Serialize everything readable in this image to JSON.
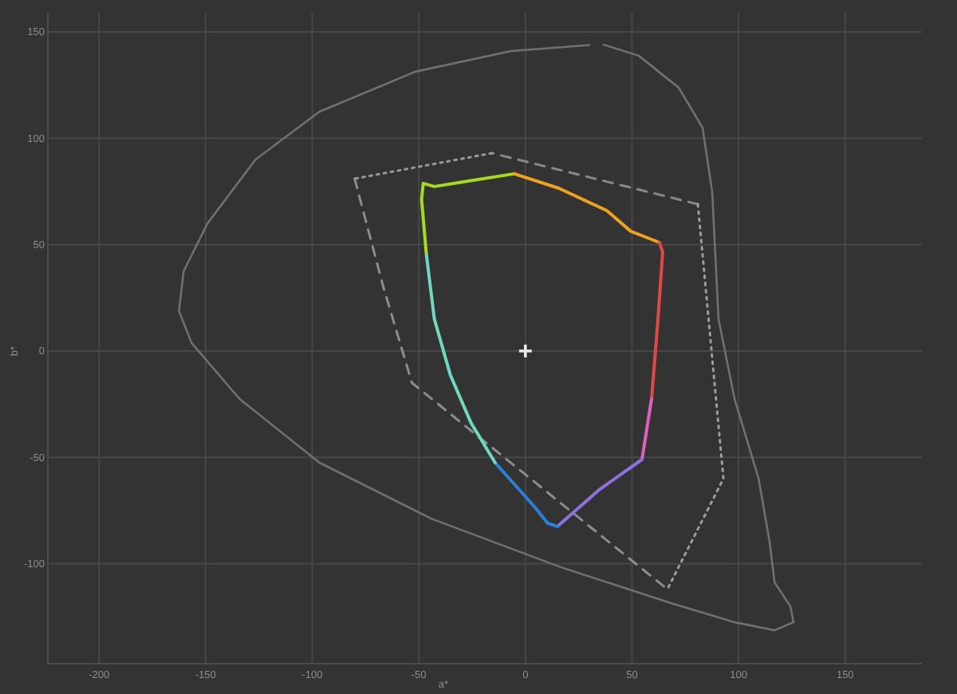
{
  "chart_data": {
    "type": "line",
    "xlabel": "a*",
    "ylabel": "b*",
    "xlim": [
      -224,
      186
    ],
    "ylim": [
      -147,
      159
    ],
    "xticks": [
      -200,
      -150,
      -100,
      -50,
      0,
      50,
      100,
      150
    ],
    "yticks": [
      -100,
      -50,
      0,
      50,
      100,
      150
    ],
    "grid": true,
    "series": [
      {
        "color": "#707070",
        "line_style": "solid",
        "x": [
          36.7,
          53.2,
          71.9,
          83.1,
          87.6,
          90.6,
          98.1,
          109.4,
          114.6,
          116.9,
          124.3,
          125.8,
          116.9,
          98.1,
          68.2,
          15.7,
          -44.2,
          -96.6,
          -134.1,
          -156.6,
          -162.5,
          -160.3,
          -149.1,
          -126.6,
          -96.6,
          -51.7,
          -6.7,
          30
        ],
        "values": [
          144,
          138.8,
          123.8,
          105,
          75,
          15,
          -22.5,
          -60,
          -90,
          -108.8,
          -120,
          -127.5,
          -131.3,
          -127.5,
          -118.5,
          -101.3,
          -78.8,
          -52.5,
          -22.5,
          3.8,
          18.8,
          37.5,
          60,
          90,
          112.5,
          131.3,
          141,
          143.8
        ]
      },
      {
        "color": "#888888",
        "line_style": "dashed",
        "x": [
          80.9,
          -15.7
        ],
        "values": [
          69,
          93
        ]
      },
      {
        "color": "#8c8c8c",
        "line_style": "dashed",
        "x": [
          -80.1,
          -66.6,
          -53.2,
          66.6
        ],
        "values": [
          81,
          30,
          -15,
          -112
        ]
      },
      {
        "color": "#989898",
        "line_style": "dotted",
        "x": [
          -15.7,
          -80.1
        ],
        "values": [
          93,
          81
        ]
      },
      {
        "color": "#9c9c9c",
        "line_style": "dotted",
        "x": [
          80.9,
          92.9,
          66.6
        ],
        "values": [
          69,
          -60,
          -112
        ]
      },
      {
        "color": "#a8d820",
        "line_style": "solid",
        "x": [
          -46.4,
          -48.7,
          -47.9,
          -42.7,
          -29.2,
          -5.2
        ],
        "values": [
          45,
          71.3,
          78.8,
          77.3,
          79.5,
          83.3
        ]
      },
      {
        "color": "#f0a020",
        "line_style": "solid",
        "x": [
          -5.2,
          15.7,
          38.2,
          49.4,
          62.9
        ],
        "values": [
          83.3,
          76.5,
          66,
          56.3,
          51
        ]
      },
      {
        "color": "#e04848",
        "line_style": "solid",
        "x": [
          62.9,
          64.4,
          62.2,
          59.2
        ],
        "values": [
          51,
          46.5,
          15,
          -22.5
        ]
      },
      {
        "color": "#e060c0",
        "line_style": "solid",
        "x": [
          59.2,
          54.7
        ],
        "values": [
          -22.5,
          -51
        ]
      },
      {
        "color": "#9070e0",
        "line_style": "solid",
        "x": [
          54.7,
          34.5,
          15
        ],
        "values": [
          -51,
          -65.3,
          -82.5
        ]
      },
      {
        "color": "#2a80d8",
        "line_style": "solid",
        "x": [
          15,
          10.5,
          4.5,
          -14.2
        ],
        "values": [
          -82.5,
          -81,
          -73.5,
          -52.5
        ]
      },
      {
        "color": "#70d8c0",
        "line_style": "solid",
        "x": [
          -14.2,
          -25.5,
          -35.2,
          -42.7,
          -46.4
        ],
        "values": [
          -52.5,
          -33.8,
          -11.3,
          15,
          45
        ]
      },
      {
        "type": "scatter",
        "marker": "cross",
        "color": "#e8e8e8",
        "x": [
          0
        ],
        "values": [
          0
        ]
      }
    ]
  }
}
